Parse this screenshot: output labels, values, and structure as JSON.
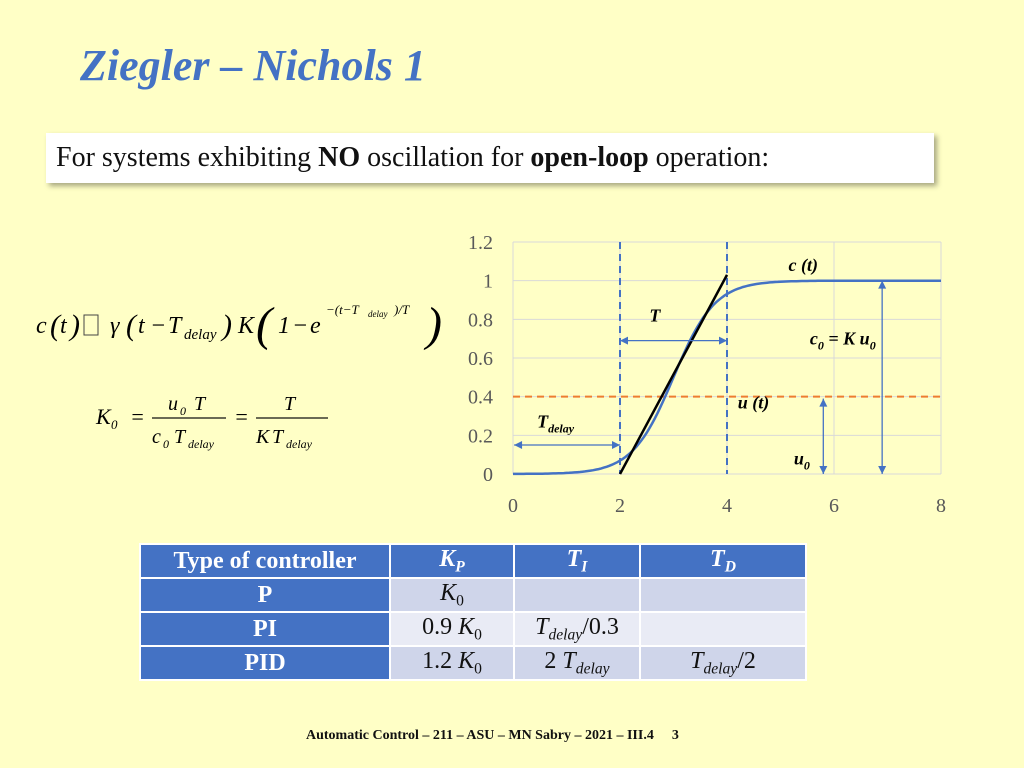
{
  "title": "Ziegler – Nichols 1",
  "banner": {
    "pre": "For systems exhibiting ",
    "bold1": "NO",
    "mid": " oscillation for ",
    "bold2": "open-loop",
    "post": " operation:"
  },
  "equations": {
    "ct": "c(t) ≅ γ(t − T_delay) K (1 − e^(−(t−T_delay)/T))",
    "k0": "K_0 = u_0 T / (c_0 T_delay) = T / (K T_delay)"
  },
  "chart_data": {
    "type": "line",
    "xlim": [
      0,
      8
    ],
    "ylim": [
      0,
      1.2
    ],
    "xticks": [
      "0",
      "2",
      "4",
      "6",
      "8"
    ],
    "yticks": [
      "0",
      "0.2",
      "0.4",
      "0.6",
      "0.8",
      "1",
      "1.2"
    ],
    "series": [
      {
        "name": "c (t)",
        "x": [
          0,
          0.5,
          1,
          1.5,
          2,
          2.5,
          3,
          3.5,
          4,
          4.5,
          5,
          5.5,
          6,
          6.5,
          7,
          7.5,
          8
        ],
        "values": [
          0.01,
          0.02,
          0.04,
          0.1,
          0.22,
          0.4,
          0.6,
          0.78,
          0.9,
          0.96,
          0.985,
          0.995,
          1.0,
          1.0,
          1.0,
          1.0,
          1.0
        ]
      },
      {
        "name": "u (t)",
        "x": [
          0,
          8
        ],
        "values": [
          0.4,
          0.4
        ]
      }
    ],
    "tangent": {
      "x": [
        2.0,
        4.0
      ],
      "values": [
        0.0,
        1.03
      ]
    },
    "delay_lines_x": [
      2,
      4
    ],
    "annotations": {
      "ct": "c (t)",
      "T": "T",
      "c0_lhs": "c",
      "c0_sub": "0",
      "c0_eq": " = K u",
      "c0_sub2": "0",
      "ut": "u (t)",
      "tdelay": "T",
      "tdelay_sub": "delay",
      "u0": "u",
      "u0_sub": "0"
    }
  },
  "table": {
    "headers": [
      "Type of controller",
      "K",
      "T",
      "T"
    ],
    "header_subs": [
      "",
      "P",
      "I",
      "D"
    ],
    "rows": [
      {
        "type": "P",
        "kp": "K",
        "kp_sub": "0",
        "ti": "",
        "td": ""
      },
      {
        "type": "PI",
        "kp_pre": "0.9 ",
        "kp": "K",
        "kp_sub": "0",
        "ti": "T",
        "ti_sub": "delay",
        "ti_post": "/0.3",
        "td": ""
      },
      {
        "type": "PID",
        "kp_pre": "1.2 ",
        "kp": "K",
        "kp_sub": "0",
        "ti_pre": "2 ",
        "ti": "T",
        "ti_sub": "delay",
        "td": "T",
        "td_sub": "delay",
        "td_post": "/2"
      }
    ]
  },
  "footer": {
    "text": "Automatic Control – 211 – ASU – MN Sabry – 2021 – III.4",
    "page": "3"
  },
  "colors": {
    "accent": "#4472c4",
    "curve": "#4472c4",
    "input": "#ed7d31",
    "background": "#ffffc6"
  }
}
